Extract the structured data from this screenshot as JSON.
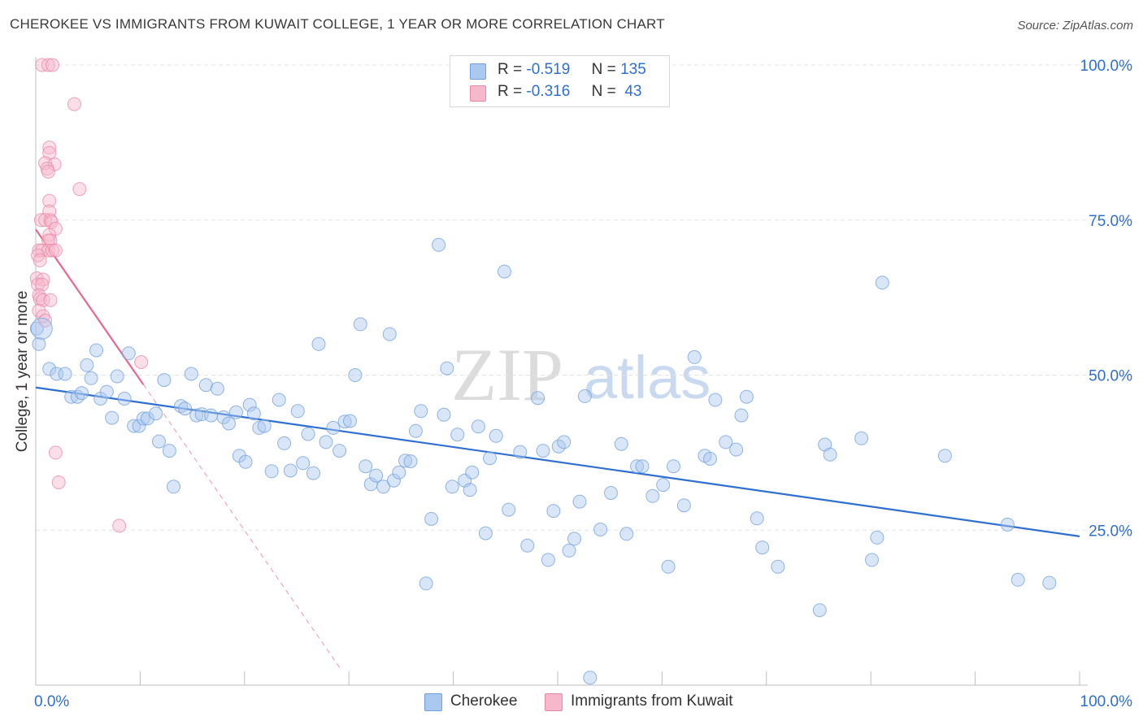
{
  "title": "CHEROKEE VS IMMIGRANTS FROM KUWAIT COLLEGE, 1 YEAR OR MORE CORRELATION CHART",
  "source": "Source: ZipAtlas.com",
  "watermark": {
    "zip": "ZIP",
    "atlas": "atlas"
  },
  "legend": {
    "r_label": "R =",
    "n_label": "N =",
    "series": [
      {
        "name": "Cherokee",
        "r": "-0.519",
        "n": "135",
        "fill": "#aac8f0",
        "stroke": "#6f9fde"
      },
      {
        "name": "Immigrants from Kuwait",
        "r": "-0.316",
        "n": "43",
        "fill": "#f7b8cb",
        "stroke": "#e887a6"
      }
    ]
  },
  "chart_data": {
    "type": "scatter",
    "xlabel": "",
    "ylabel": "College, 1 year or more",
    "xlim": [
      0,
      100
    ],
    "ylim": [
      0,
      100
    ],
    "x_tick_labels": [
      "0.0%",
      "100.0%"
    ],
    "y_ticks": [
      25,
      50,
      75,
      100
    ],
    "y_tick_labels": [
      "25.0%",
      "50.0%",
      "75.0%",
      "100.0%"
    ],
    "x_minor_ticks": [
      10,
      20,
      30,
      40,
      50,
      60,
      70,
      80,
      90,
      100
    ],
    "gridlines": true,
    "series": [
      {
        "name": "Cherokee",
        "color": "#6f9fde",
        "trend": {
          "x": [
            0,
            100
          ],
          "y": [
            48.0,
            24.0
          ],
          "color": "#2e6fd1"
        },
        "points": [
          [
            0.1,
            57.5
          ],
          [
            0.3,
            55
          ],
          [
            1.3,
            51
          ],
          [
            2.0,
            50.2
          ],
          [
            2.8,
            50.2
          ],
          [
            3.4,
            46.5
          ],
          [
            4.0,
            46.5
          ],
          [
            4.4,
            47.1
          ],
          [
            4.9,
            51.6
          ],
          [
            5.3,
            49.5
          ],
          [
            5.8,
            54
          ],
          [
            6.2,
            46.2
          ],
          [
            6.8,
            47.3
          ],
          [
            7.3,
            43.1
          ],
          [
            7.8,
            49.8
          ],
          [
            8.5,
            46.2
          ],
          [
            8.9,
            53.5
          ],
          [
            9.4,
            41.8
          ],
          [
            9.9,
            41.8
          ],
          [
            10.3,
            43
          ],
          [
            10.7,
            43
          ],
          [
            11.5,
            43.8
          ],
          [
            11.8,
            39.3
          ],
          [
            12.3,
            49.2
          ],
          [
            12.8,
            37.8
          ],
          [
            13.2,
            32
          ],
          [
            13.9,
            45
          ],
          [
            14.3,
            44.6
          ],
          [
            14.9,
            50.2
          ],
          [
            15.4,
            43.5
          ],
          [
            15.9,
            43.7
          ],
          [
            16.3,
            48.4
          ],
          [
            16.8,
            43.5
          ],
          [
            17.4,
            47.8
          ],
          [
            18,
            43.2
          ],
          [
            18.5,
            42.2
          ],
          [
            19.2,
            44
          ],
          [
            19.5,
            37
          ],
          [
            20.1,
            36
          ],
          [
            20.5,
            45.2
          ],
          [
            20.9,
            43.8
          ],
          [
            21.4,
            41.5
          ],
          [
            21.9,
            41.8
          ],
          [
            22.6,
            34.5
          ],
          [
            23.3,
            46
          ],
          [
            23.8,
            39
          ],
          [
            24.4,
            34.6
          ],
          [
            25.1,
            44.2
          ],
          [
            25.6,
            35.8
          ],
          [
            26.1,
            40.5
          ],
          [
            26.6,
            34.2
          ],
          [
            27.1,
            55
          ],
          [
            27.8,
            39.2
          ],
          [
            28.5,
            41.5
          ],
          [
            29.1,
            37.8
          ],
          [
            29.6,
            42.5
          ],
          [
            30.1,
            42.6
          ],
          [
            30.6,
            50
          ],
          [
            31.1,
            58.2
          ],
          [
            31.6,
            35.3
          ],
          [
            32.1,
            32.4
          ],
          [
            32.6,
            33.8
          ],
          [
            33.3,
            32
          ],
          [
            33.9,
            56.6
          ],
          [
            34.3,
            33
          ],
          [
            34.8,
            34.3
          ],
          [
            35.4,
            36.2
          ],
          [
            35.9,
            36.1
          ],
          [
            36.4,
            41
          ],
          [
            36.9,
            44.2
          ],
          [
            37.4,
            16.4
          ],
          [
            37.9,
            26.8
          ],
          [
            38.6,
            71
          ],
          [
            39.1,
            43.6
          ],
          [
            39.4,
            51.1
          ],
          [
            39.9,
            32
          ],
          [
            40.4,
            40.4
          ],
          [
            41.1,
            33
          ],
          [
            41.6,
            31.5
          ],
          [
            41.8,
            34.3
          ],
          [
            42.4,
            41.7
          ],
          [
            43.1,
            24.5
          ],
          [
            43.5,
            36.6
          ],
          [
            44.1,
            40.2
          ],
          [
            44.9,
            66.7
          ],
          [
            45.3,
            28.3
          ],
          [
            46.4,
            37.6
          ],
          [
            47.1,
            22.5
          ],
          [
            48.1,
            46.3
          ],
          [
            48.6,
            37.8
          ],
          [
            49.1,
            20.2
          ],
          [
            49.6,
            28.1
          ],
          [
            50.1,
            38.5
          ],
          [
            50.6,
            39.2
          ],
          [
            51.1,
            21.7
          ],
          [
            51.6,
            23.6
          ],
          [
            52.1,
            29.6
          ],
          [
            52.6,
            46.6
          ],
          [
            53.1,
            1.2
          ],
          [
            54.1,
            25.1
          ],
          [
            55.1,
            31
          ],
          [
            56.1,
            38.9
          ],
          [
            56.6,
            24.4
          ],
          [
            57.6,
            35.3
          ],
          [
            58.1,
            35.3
          ],
          [
            59.1,
            30.5
          ],
          [
            60.1,
            32.3
          ],
          [
            60.6,
            19.1
          ],
          [
            61.1,
            35.3
          ],
          [
            62.1,
            29
          ],
          [
            63.1,
            52.9
          ],
          [
            64.1,
            37
          ],
          [
            64.6,
            36.5
          ],
          [
            65.1,
            46
          ],
          [
            66.1,
            39.2
          ],
          [
            67.1,
            38
          ],
          [
            67.6,
            43.5
          ],
          [
            68.1,
            46.5
          ],
          [
            69.1,
            26.9
          ],
          [
            69.6,
            22.2
          ],
          [
            71.1,
            19.1
          ],
          [
            75.1,
            12.1
          ],
          [
            75.6,
            38.8
          ],
          [
            76.1,
            37.2
          ],
          [
            79.1,
            39.8
          ],
          [
            80.1,
            20.2
          ],
          [
            80.6,
            23.8
          ],
          [
            81.1,
            64.9
          ],
          [
            87.1,
            37
          ],
          [
            93.1,
            25.9
          ],
          [
            94.1,
            17
          ],
          [
            97.1,
            16.5
          ]
        ]
      },
      {
        "name": "Immigrants from Kuwait",
        "color": "#e887a6",
        "trend": {
          "x": [
            0,
            10.3
          ],
          "y": [
            73.5,
            48.5
          ],
          "color": "#e8678f",
          "extend_to_x": 29.3
        },
        "points": [
          [
            0.6,
            100
          ],
          [
            1.2,
            100
          ],
          [
            1.6,
            100
          ],
          [
            3.7,
            93.7
          ],
          [
            1.3,
            86.7
          ],
          [
            1.3,
            85.8
          ],
          [
            0.9,
            84.2
          ],
          [
            1.8,
            84
          ],
          [
            1.1,
            83.3
          ],
          [
            1.2,
            82.8
          ],
          [
            4.2,
            80
          ],
          [
            1.3,
            78.1
          ],
          [
            1.3,
            76.4
          ],
          [
            0.5,
            75
          ],
          [
            0.9,
            75
          ],
          [
            1.4,
            75
          ],
          [
            1.5,
            74.7
          ],
          [
            1.9,
            73.6
          ],
          [
            1.3,
            72.6
          ],
          [
            1.4,
            71.7
          ],
          [
            1.2,
            71.7
          ],
          [
            0.3,
            70.1
          ],
          [
            0.6,
            70.1
          ],
          [
            1.2,
            70.1
          ],
          [
            1.6,
            70.1
          ],
          [
            1.9,
            70.1
          ],
          [
            0.2,
            69.3
          ],
          [
            0.4,
            68.5
          ],
          [
            0.1,
            65.6
          ],
          [
            0.7,
            65.4
          ],
          [
            0.2,
            64.6
          ],
          [
            0.6,
            64.6
          ],
          [
            0.3,
            62.9
          ],
          [
            0.4,
            62.3
          ],
          [
            0.7,
            62.1
          ],
          [
            1.4,
            62.1
          ],
          [
            0.3,
            60.4
          ],
          [
            0.7,
            59.5
          ],
          [
            0.9,
            58.8
          ],
          [
            10.1,
            52.1
          ],
          [
            1.9,
            37.5
          ],
          [
            2.2,
            32.7
          ],
          [
            8.0,
            25.7
          ]
        ]
      }
    ]
  }
}
